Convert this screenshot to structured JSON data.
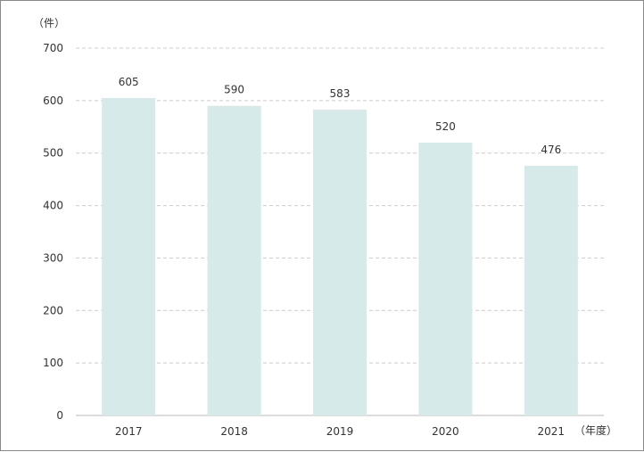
{
  "chart_data": {
    "type": "bar",
    "categories": [
      "2017",
      "2018",
      "2019",
      "2020",
      "2021"
    ],
    "values": [
      605,
      590,
      583,
      520,
      476
    ],
    "data_labels": [
      "605",
      "590",
      "583",
      "520",
      "476"
    ],
    "y_unit_label": "（件）",
    "x_unit_label": "（年度）",
    "ylim": [
      0,
      700
    ],
    "y_ticks": [
      0,
      100,
      200,
      300,
      400,
      500,
      600,
      700
    ],
    "grid": true,
    "grid_style": "dashed",
    "bar_color": "#d6eaea",
    "grid_color": "#cccccc",
    "axis_color": "#bbbbbb"
  }
}
